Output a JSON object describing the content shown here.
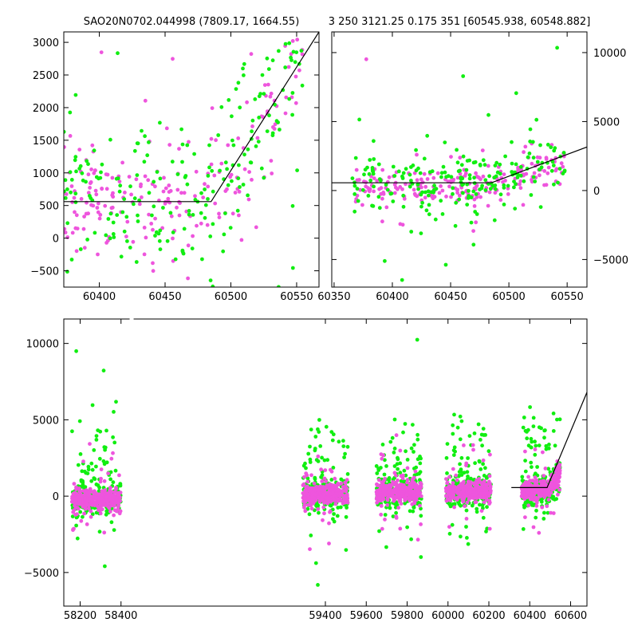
{
  "figure": {
    "title_left": "SAO20N0702.044998 (7809.17, 1664.55)",
    "title_right": "3 250 3121.25 0.175 351 [60545.938, 60548.882]"
  },
  "colors": {
    "series_a": "#ee55dd",
    "series_b": "#11ee11",
    "fit_line": "#000000"
  },
  "chart_data": [
    {
      "type": "scatter",
      "xlim": [
        60373,
        60567
      ],
      "ylim": [
        -750,
        3160
      ],
      "xticks": [
        60400,
        60450,
        60500,
        60550
      ],
      "yticks": [
        -500,
        0,
        500,
        1000,
        1500,
        2000,
        2500,
        3000
      ],
      "fit_line": [
        [
          60373,
          560
        ],
        [
          60485,
          560
        ],
        [
          60567,
          3160
        ]
      ],
      "points": {
        "seed": 7,
        "n_per_series": 220,
        "x_range": [
          60373,
          60555
        ],
        "break_x": 60485,
        "baseline": 560,
        "slope_after": 31.7,
        "scatter_sd": 500
      }
    },
    {
      "type": "scatter",
      "xlim": [
        60348,
        60567
      ],
      "ylim": [
        -7000,
        11500
      ],
      "xticks": [
        60350,
        60400,
        60450,
        60500,
        60550
      ],
      "yticks": [
        -5000,
        0,
        5000,
        10000
      ],
      "fit_line": [
        [
          60348,
          560
        ],
        [
          60485,
          560
        ],
        [
          60567,
          3160
        ]
      ],
      "points": {
        "seed": 11,
        "n_per_series": 220,
        "x_range": [
          60365,
          60548
        ],
        "break_x": 60485,
        "baseline": 300,
        "slope_after": 31.7,
        "scatter_sd": 500
      }
    },
    {
      "type": "scatter",
      "xlim": [
        58120,
        60680
      ],
      "ylim": [
        -7200,
        11600
      ],
      "xticks": [
        58200,
        58400,
        59400,
        59600,
        59800,
        60000,
        60200,
        60400,
        60600
      ],
      "yticks": [
        -5000,
        0,
        5000,
        10000
      ],
      "axis_gap": [
        58450,
        59280
      ],
      "fit_line": [
        [
          60310,
          560
        ],
        [
          60485,
          560
        ],
        [
          60680,
          6800
        ]
      ],
      "seasons": [
        {
          "x_range": [
            58160,
            58400
          ],
          "center": -200
        },
        {
          "x_range": [
            59290,
            59510
          ],
          "center": 150
        },
        {
          "x_range": [
            59650,
            59870
          ],
          "center": 250
        },
        {
          "x_range": [
            59990,
            60210
          ],
          "center": 300
        },
        {
          "x_range": [
            60360,
            60548
          ],
          "center": 400
        }
      ]
    }
  ]
}
